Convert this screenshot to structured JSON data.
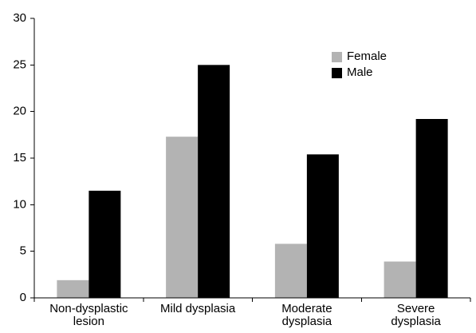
{
  "chart_data": {
    "type": "bar",
    "title": "",
    "xlabel": "",
    "ylabel": "",
    "categories": [
      [
        "Non-dysplastic",
        "lesion"
      ],
      [
        "Mild dysplasia"
      ],
      [
        "Moderate",
        "dysplasia"
      ],
      [
        "Severe",
        "dysplasia"
      ]
    ],
    "series": [
      {
        "name": "Female",
        "color": "#b3b3b3",
        "values": [
          1.9,
          17.3,
          5.8,
          3.9
        ]
      },
      {
        "name": "Male",
        "color": "#000000",
        "values": [
          11.5,
          25.0,
          15.4,
          19.2
        ]
      }
    ],
    "ylim": [
      0,
      30
    ],
    "yticks": [
      0,
      5,
      10,
      15,
      20,
      25,
      30
    ],
    "grid": false,
    "legend_position": "top-right"
  }
}
